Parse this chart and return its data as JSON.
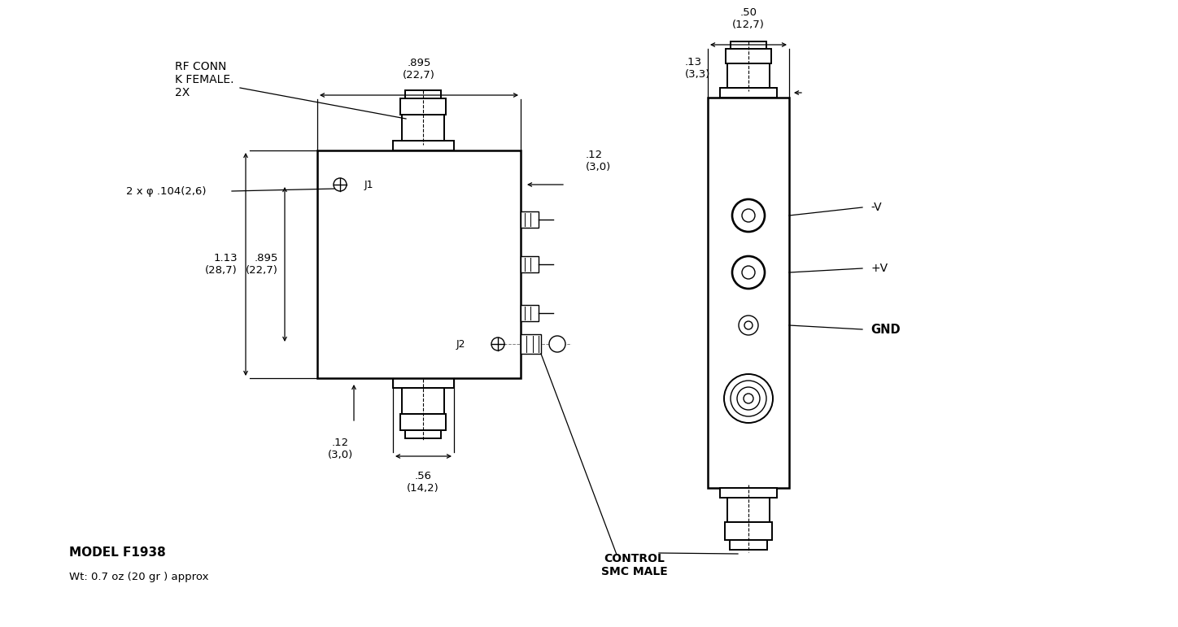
{
  "bg_color": "#ffffff",
  "line_color": "#000000",
  "model_text": "MODEL F1938",
  "weight_text": "Wt: 0.7 oz (20 gr ) approx",
  "rf_conn_text": "RF CONN\nK FEMALE.\n2X",
  "control_text": "CONTROL\nSMC MALE",
  "dim_895_top": ".895\n(22,7)",
  "dim_50": ".50\n(12,7)",
  "dim_13": ".13\n(3,3)",
  "dim_12_right": ".12\n(3,0)",
  "dim_113": "1.13\n(28,7)",
  "dim_895_left": ".895\n(22,7)",
  "dim_12_bot": ".12\n(3,0)",
  "dim_56": ".56\n(14,2)",
  "dim_hole": "2 x φ .104(2,6)",
  "neg_v": "-V",
  "pos_v": "+V",
  "gnd": "GND",
  "j1": "J1",
  "j2": "J2"
}
